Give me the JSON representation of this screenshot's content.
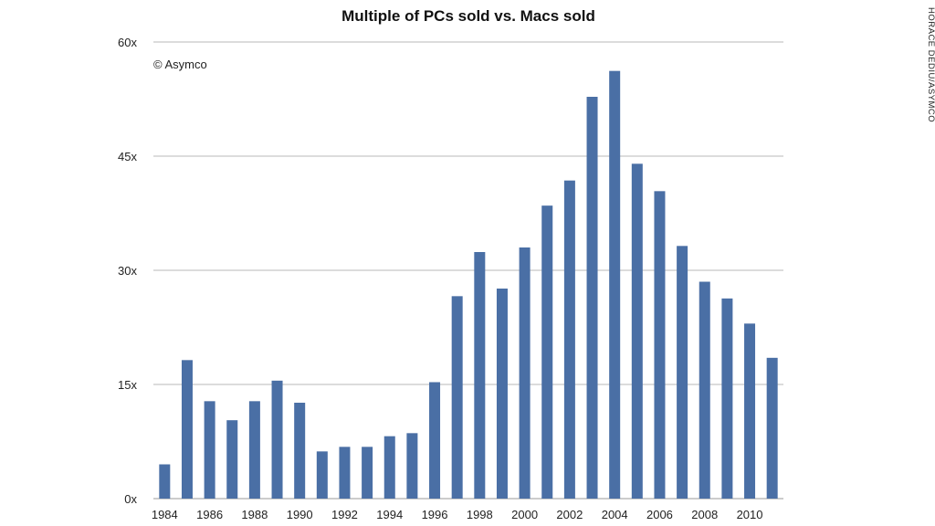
{
  "chart_data": {
    "type": "bar",
    "title": "Multiple of PCs sold vs. Macs sold",
    "copyright": "© Asymco",
    "credit": "HORACE DEDIU/ASYMCO",
    "xlabel": "",
    "ylabel": "",
    "ylim": [
      0,
      60
    ],
    "yticks": [
      "0x",
      "15x",
      "30x",
      "45x",
      "60x"
    ],
    "ytick_values": [
      0,
      15,
      30,
      45,
      60
    ],
    "grid": true,
    "bar_color": "#4a6fa5",
    "categories": [
      "1984",
      "1985",
      "1986",
      "1987",
      "1988",
      "1989",
      "1990",
      "1991",
      "1992",
      "1993",
      "1994",
      "1995",
      "1996",
      "1997",
      "1998",
      "1999",
      "2000",
      "2001",
      "2002",
      "2003",
      "2004",
      "2005",
      "2006",
      "2007",
      "2008",
      "2009",
      "2010",
      "2011"
    ],
    "xtick_labels": [
      "1984",
      "1986",
      "1988",
      "1990",
      "1992",
      "1994",
      "1996",
      "1998",
      "2000",
      "2002",
      "2004",
      "2006",
      "2008",
      "2010"
    ],
    "values": [
      4.5,
      18.2,
      12.8,
      10.3,
      12.8,
      15.5,
      12.6,
      6.2,
      6.8,
      6.8,
      8.2,
      8.6,
      15.3,
      26.6,
      32.4,
      27.6,
      33.0,
      38.5,
      41.8,
      52.8,
      56.2,
      44.0,
      40.4,
      33.2,
      28.5,
      26.3,
      23.0,
      18.5
    ]
  }
}
